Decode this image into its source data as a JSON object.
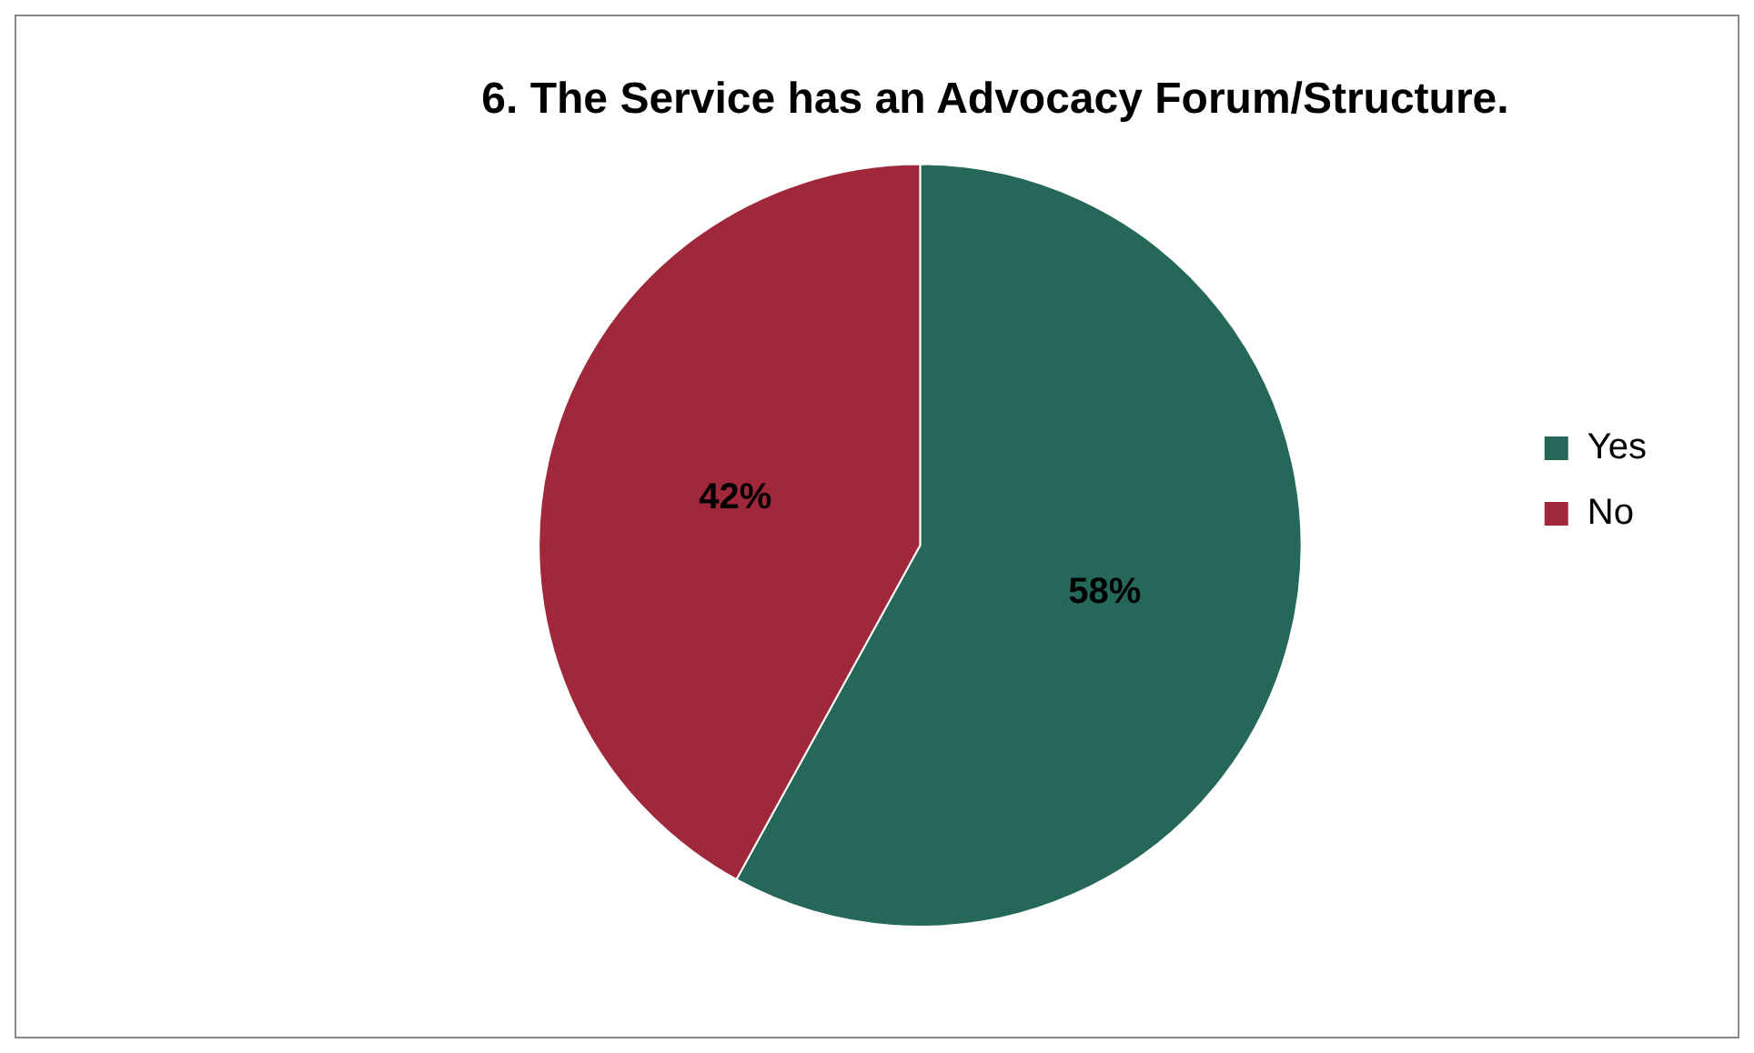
{
  "chart_data": {
    "type": "pie",
    "title": "6. The Service has an Advocacy Forum/Structure.",
    "categories": [
      "Yes",
      "No"
    ],
    "values": [
      58,
      42
    ],
    "colors": [
      "#256859",
      "#a0283a"
    ],
    "value_labels": [
      "58%",
      "42%"
    ],
    "legend": "right"
  }
}
